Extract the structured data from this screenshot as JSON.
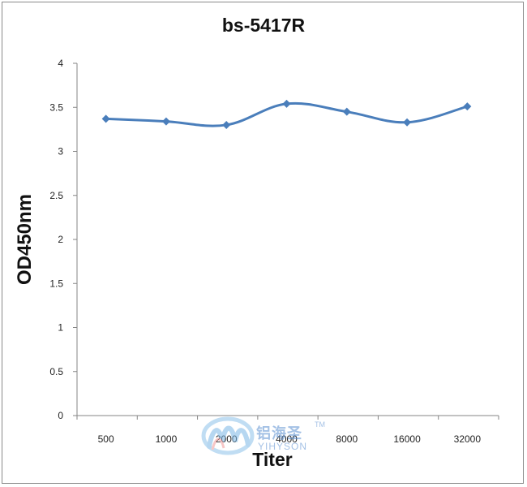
{
  "chart_data": {
    "type": "line",
    "title": "bs-5417R",
    "xlabel": "Titer",
    "ylabel": "OD450nm",
    "categories": [
      "500",
      "1000",
      "2000",
      "4000",
      "8000",
      "16000",
      "32000"
    ],
    "values": [
      3.37,
      3.34,
      3.3,
      3.54,
      3.45,
      3.33,
      3.51
    ],
    "ylim": [
      0,
      4
    ],
    "yticks": [
      "0",
      "0.5",
      "1",
      "1.5",
      "2",
      "2.5",
      "3",
      "3.5",
      "4"
    ],
    "grid": false,
    "smooth": true,
    "series_color": "#4a7ebb",
    "axis_color": "#868686"
  },
  "watermark": {
    "chinese_text": "铝海圣",
    "trademark": "TM",
    "english_text": "YIHYSON"
  }
}
